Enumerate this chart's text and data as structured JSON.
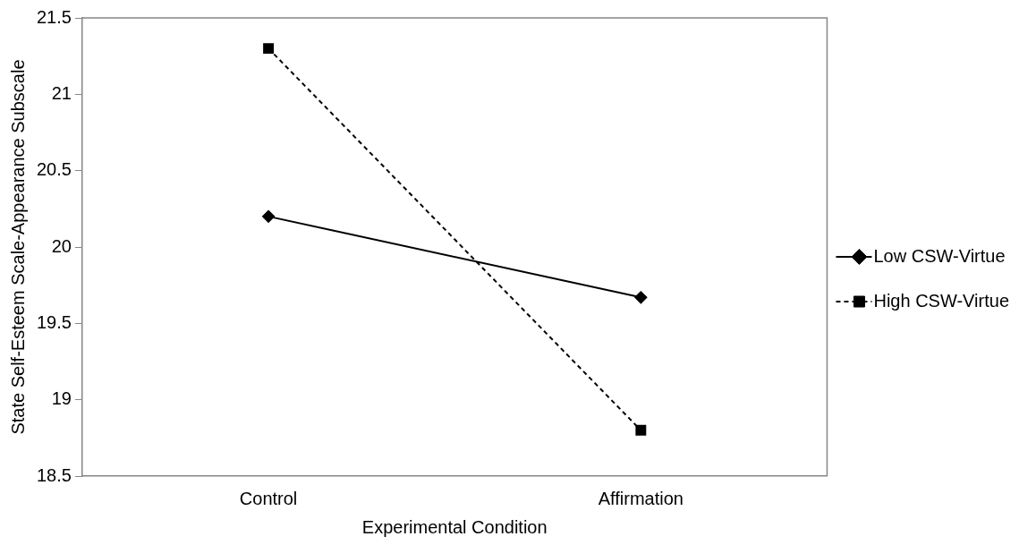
{
  "chart_data": {
    "type": "line",
    "xlabel": "Experimental Condition",
    "ylabel": "State Self-Esteem Scale-Appearance Subscale",
    "categories": [
      "Control",
      "Affirmation"
    ],
    "series": [
      {
        "name": "Low CSW-Virtue",
        "color": "#000000",
        "values": [
          20.2,
          19.67
        ],
        "marker": "diamond",
        "line_style": "solid"
      },
      {
        "name": "High CSW-Virtue",
        "color": "#000000",
        "values": [
          21.3,
          18.8
        ],
        "marker": "square",
        "line_style": "dashed"
      }
    ],
    "ylim": [
      18.5,
      21.5
    ],
    "yticks": [
      18.5,
      19,
      19.5,
      20,
      20.5,
      21,
      21.5
    ],
    "grid": false,
    "legend": "right"
  }
}
